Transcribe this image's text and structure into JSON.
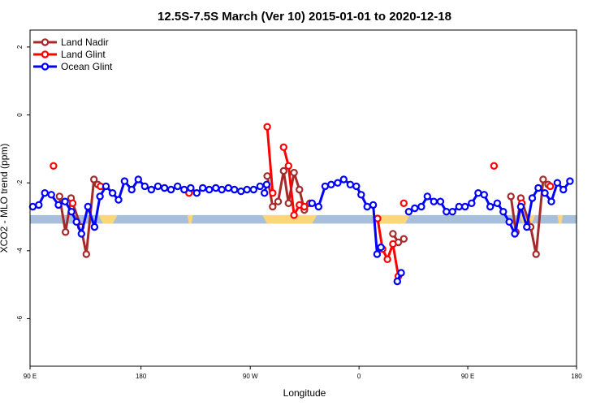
{
  "chart_data": {
    "type": "line",
    "title": "12.5S-7.5S March (Ver 10)   2015-01-01 to 2020-12-18",
    "xlabel": "Longitude",
    "ylabel": "XCO2 - MLO trend (ppm)",
    "xlim": [
      0,
      100
    ],
    "ylim": [
      -7.4,
      2.5
    ],
    "x_ticks": [
      {
        "x": 0,
        "label": "90 E"
      },
      {
        "x": 20.3,
        "label": "180"
      },
      {
        "x": 40.3,
        "label": "90 W"
      },
      {
        "x": 60.2,
        "label": "0"
      },
      {
        "x": 80.1,
        "label": "90 E"
      },
      {
        "x": 100,
        "label": "180"
      }
    ],
    "y_ticks": [
      {
        "y": 2,
        "label": "2"
      },
      {
        "y": 0,
        "label": "0"
      },
      {
        "y": -2,
        "label": "-2"
      },
      {
        "y": -4,
        "label": "-4"
      },
      {
        "y": -6,
        "label": "-6"
      }
    ],
    "grid": false,
    "legend_position": "top-left",
    "band": {
      "y_min": -3.2,
      "y_max": -2.95,
      "color": "#a8bfdc"
    },
    "land_patches": [
      {
        "x_min": 12.5,
        "x_max": 16.0,
        "y_min": -3.2,
        "y_max": -2.95
      },
      {
        "x_min": 28.8,
        "x_max": 29.8,
        "y_min": -3.2,
        "y_max": -2.95
      },
      {
        "x_min": 42.5,
        "x_max": 52.5,
        "y_min": -3.2,
        "y_max": -2.95
      },
      {
        "x_min": 62.5,
        "x_max": 69.5,
        "y_min": -3.2,
        "y_max": -2.95
      },
      {
        "x_min": 89.5,
        "x_max": 92.5,
        "y_min": -3.2,
        "y_max": -2.95
      },
      {
        "x_min": 96.5,
        "x_max": 97.5,
        "y_min": -3.2,
        "y_max": -2.95
      }
    ],
    "land_color": "#fdd57a",
    "series": [
      {
        "name": "Land Nadir",
        "color": "#a52a2a",
        "segments": [
          [
            [
              5.4,
              -2.4
            ],
            [
              6.5,
              -3.45
            ],
            [
              7.5,
              -2.45
            ],
            [
              9.3,
              -3.3
            ],
            [
              10.3,
              -4.1
            ],
            [
              11.7,
              -1.9
            ],
            [
              12.4,
              -2.05
            ]
          ],
          [
            [
              43.4,
              -1.8
            ],
            [
              44.4,
              -2.7
            ],
            [
              45.4,
              -2.55
            ],
            [
              46.4,
              -1.65
            ],
            [
              47.3,
              -2.6
            ],
            [
              48.3,
              -1.7
            ],
            [
              49.3,
              -2.2
            ],
            [
              50.2,
              -2.8
            ],
            [
              51.2,
              -2.6
            ]
          ],
          [
            [
              66.4,
              -3.5
            ],
            [
              67.4,
              -3.75
            ],
            [
              68.4,
              -3.65
            ]
          ],
          [
            [
              88.0,
              -2.4
            ],
            [
              88.9,
              -3.45
            ],
            [
              89.8,
              -2.45
            ],
            [
              91.6,
              -3.3
            ],
            [
              92.6,
              -4.1
            ],
            [
              93.9,
              -1.9
            ],
            [
              94.8,
              -2.05
            ]
          ]
        ]
      },
      {
        "name": "Land Glint",
        "color": "#ff0000",
        "segments": [
          [
            [
              4.3,
              -1.5
            ]
          ],
          [
            [
              7.8,
              -2.6
            ]
          ],
          [
            [
              12.9,
              -2.1
            ]
          ],
          [
            [
              29.1,
              -2.3
            ]
          ],
          [
            [
              43.4,
              -0.35
            ],
            [
              44.4,
              -2.3
            ]
          ],
          [
            [
              46.4,
              -0.95
            ],
            [
              47.3,
              -1.5
            ],
            [
              48.3,
              -2.95
            ],
            [
              49.3,
              -2.65
            ],
            [
              50.2,
              -2.7
            ]
          ],
          [
            [
              63.6,
              -3.05
            ],
            [
              64.5,
              -3.95
            ],
            [
              65.4,
              -4.25
            ],
            [
              66.4,
              -3.8
            ],
            [
              67.4,
              -4.75
            ]
          ],
          [
            [
              68.4,
              -2.6
            ]
          ],
          [
            [
              84.9,
              -1.5
            ]
          ],
          [
            [
              90.0,
              -2.6
            ]
          ],
          [
            [
              95.2,
              -2.1
            ]
          ]
        ]
      },
      {
        "name": "Ocean Glint",
        "color": "#0000ff",
        "segments": [
          [
            [
              0.5,
              -2.7
            ],
            [
              1.6,
              -2.65
            ],
            [
              2.7,
              -2.3
            ],
            [
              3.9,
              -2.35
            ],
            [
              5.2,
              -2.65
            ],
            [
              6.4,
              -2.55
            ],
            [
              7.6,
              -2.85
            ],
            [
              8.5,
              -3.15
            ],
            [
              9.4,
              -3.5
            ],
            [
              10.6,
              -2.7
            ],
            [
              11.8,
              -3.3
            ],
            [
              12.8,
              -2.4
            ],
            [
              13.9,
              -2.1
            ],
            [
              15.1,
              -2.3
            ],
            [
              16.2,
              -2.5
            ],
            [
              17.3,
              -1.95
            ],
            [
              18.6,
              -2.2
            ],
            [
              19.8,
              -1.9
            ],
            [
              21.0,
              -2.1
            ],
            [
              22.2,
              -2.2
            ],
            [
              23.4,
              -2.1
            ],
            [
              24.6,
              -2.15
            ],
            [
              25.8,
              -2.2
            ],
            [
              27.0,
              -2.1
            ],
            [
              28.2,
              -2.2
            ],
            [
              29.4,
              -2.15
            ],
            [
              30.5,
              -2.3
            ],
            [
              31.6,
              -2.15
            ],
            [
              32.8,
              -2.2
            ],
            [
              34.0,
              -2.15
            ],
            [
              35.1,
              -2.2
            ],
            [
              36.3,
              -2.15
            ],
            [
              37.4,
              -2.2
            ],
            [
              38.6,
              -2.25
            ],
            [
              39.7,
              -2.2
            ],
            [
              40.9,
              -2.2
            ],
            [
              42.1,
              -2.1
            ],
            [
              43.3,
              -2.05
            ],
            [
              42.9,
              -2.3
            ]
          ],
          [
            [
              51.6,
              -2.6
            ],
            [
              52.8,
              -2.7
            ],
            [
              54.0,
              -2.1
            ],
            [
              55.1,
              -2.05
            ],
            [
              56.3,
              -2.0
            ],
            [
              57.4,
              -1.9
            ],
            [
              58.6,
              -2.05
            ],
            [
              59.7,
              -2.1
            ],
            [
              60.6,
              -2.35
            ],
            [
              61.7,
              -2.7
            ],
            [
              62.8,
              -2.65
            ],
            [
              63.5,
              -4.1
            ],
            [
              64.2,
              -3.9
            ]
          ],
          [
            [
              67.2,
              -4.9
            ],
            [
              67.9,
              -4.65
            ]
          ],
          [
            [
              69.3,
              -2.85
            ],
            [
              70.4,
              -2.75
            ],
            [
              71.6,
              -2.7
            ],
            [
              72.7,
              -2.4
            ],
            [
              73.9,
              -2.55
            ],
            [
              75.1,
              -2.55
            ],
            [
              76.2,
              -2.85
            ],
            [
              77.3,
              -2.85
            ],
            [
              78.5,
              -2.7
            ],
            [
              79.6,
              -2.7
            ],
            [
              80.8,
              -2.6
            ],
            [
              82.0,
              -2.3
            ],
            [
              83.1,
              -2.35
            ],
            [
              84.2,
              -2.7
            ],
            [
              85.5,
              -2.6
            ],
            [
              86.6,
              -2.85
            ],
            [
              87.7,
              -3.15
            ],
            [
              88.7,
              -3.5
            ],
            [
              89.8,
              -2.7
            ],
            [
              90.9,
              -3.3
            ],
            [
              91.9,
              -2.45
            ],
            [
              93.0,
              -2.15
            ],
            [
              94.2,
              -2.3
            ],
            [
              95.4,
              -2.55
            ],
            [
              96.5,
              -2.0
            ],
            [
              97.6,
              -2.2
            ],
            [
              98.8,
              -1.95
            ]
          ]
        ]
      }
    ]
  }
}
